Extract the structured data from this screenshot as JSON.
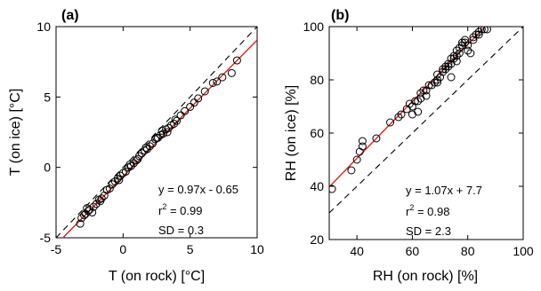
{
  "chart_data": [
    {
      "type": "scatter",
      "panel_label": "(a)",
      "xlabel": "T (on rock) [°C]",
      "ylabel": "T (on ice) [°C]",
      "xlim": [
        -5,
        10
      ],
      "ylim": [
        -5,
        10
      ],
      "xticks": [
        "-5",
        "0",
        "5",
        "10"
      ],
      "yticks": [
        "-5",
        "0",
        "5",
        "10"
      ],
      "one_to_one": {
        "x": [
          -5,
          10
        ],
        "y": [
          -5,
          10
        ],
        "style": "dashed",
        "color": "#000000"
      },
      "fit": {
        "slope": 0.97,
        "intercept": -0.65,
        "color": "#e0201b"
      },
      "annotation": {
        "eq": "y = 0.97x - 0.65",
        "r2_prefix": "r",
        "r2_sup": "2",
        "r2_value": " = 0.99",
        "sd": "SD = 0.3"
      },
      "points": [
        [
          -3.2,
          -4.0
        ],
        [
          -3.1,
          -3.6
        ],
        [
          -2.9,
          -3.4
        ],
        [
          -2.8,
          -3.3
        ],
        [
          -2.6,
          -3.1
        ],
        [
          -2.5,
          -3.0
        ],
        [
          -2.3,
          -3.2
        ],
        [
          -2.2,
          -2.8
        ],
        [
          -2.0,
          -2.6
        ],
        [
          -1.8,
          -2.3
        ],
        [
          -1.6,
          -2.2
        ],
        [
          -1.4,
          -2.0
        ],
        [
          -1.2,
          -1.6
        ],
        [
          -1.0,
          -1.5
        ],
        [
          -0.8,
          -1.2
        ],
        [
          -0.6,
          -1.0
        ],
        [
          -0.4,
          -0.8
        ],
        [
          -0.2,
          -0.6
        ],
        [
          0.0,
          -0.4
        ],
        [
          0.2,
          -0.3
        ],
        [
          0.4,
          0.0
        ],
        [
          0.6,
          0.1
        ],
        [
          0.8,
          0.3
        ],
        [
          1.0,
          0.5
        ],
        [
          1.2,
          0.8
        ],
        [
          1.4,
          1.0
        ],
        [
          1.6,
          1.2
        ],
        [
          1.8,
          1.3
        ],
        [
          2.0,
          1.5
        ],
        [
          2.2,
          1.7
        ],
        [
          2.4,
          2.0
        ],
        [
          2.6,
          2.1
        ],
        [
          2.8,
          2.3
        ],
        [
          3.0,
          2.4
        ],
        [
          3.2,
          2.7
        ],
        [
          3.4,
          2.8
        ],
        [
          3.6,
          3.0
        ],
        [
          3.8,
          3.1
        ],
        [
          4.0,
          3.3
        ],
        [
          4.3,
          3.7
        ],
        [
          4.6,
          4.0
        ],
        [
          5.0,
          4.3
        ],
        [
          5.3,
          4.6
        ],
        [
          5.6,
          4.9
        ],
        [
          6.1,
          5.4
        ],
        [
          6.7,
          6.0
        ],
        [
          7.0,
          6.1
        ],
        [
          7.4,
          6.4
        ],
        [
          8.1,
          6.7
        ],
        [
          8.5,
          7.6
        ],
        [
          -0.3,
          -0.9
        ],
        [
          0.5,
          0.2
        ],
        [
          1.1,
          0.6
        ],
        [
          2.5,
          2.1
        ],
        [
          3.3,
          2.5
        ],
        [
          -1.7,
          -2.4
        ],
        [
          -2.7,
          -2.9
        ],
        [
          1.7,
          1.4
        ],
        [
          2.9,
          2.6
        ],
        [
          3.9,
          3.4
        ]
      ]
    },
    {
      "type": "scatter",
      "panel_label": "(b)",
      "xlabel": "RH (on rock) [%]",
      "ylabel": "RH (on ice) [%]",
      "xlim": [
        30,
        100
      ],
      "ylim": [
        20,
        100
      ],
      "xticks": [
        "40",
        "60",
        "80",
        "100"
      ],
      "yticks": [
        "20",
        "40",
        "60",
        "80",
        "100"
      ],
      "one_to_one": {
        "x": [
          30,
          100
        ],
        "y": [
          30,
          100
        ],
        "style": "dashed",
        "color": "#000000"
      },
      "fit": {
        "slope": 1.07,
        "intercept": 7.7,
        "color": "#e0201b"
      },
      "annotation": {
        "eq": "y = 1.07x + 7.7",
        "r2_prefix": "r",
        "r2_sup": "2",
        "r2_value": " = 0.98",
        "sd": "SD = 2.3"
      },
      "points": [
        [
          31,
          39
        ],
        [
          38,
          46
        ],
        [
          40,
          50
        ],
        [
          41,
          53
        ],
        [
          42,
          55
        ],
        [
          42,
          57
        ],
        [
          47,
          58
        ],
        [
          52,
          64
        ],
        [
          55,
          66
        ],
        [
          56,
          67
        ],
        [
          58,
          69
        ],
        [
          59,
          71
        ],
        [
          60,
          70
        ],
        [
          61,
          72
        ],
        [
          62,
          72
        ],
        [
          63,
          73
        ],
        [
          63,
          75
        ],
        [
          64,
          76
        ],
        [
          65,
          76
        ],
        [
          66,
          78
        ],
        [
          67,
          78
        ],
        [
          68,
          79
        ],
        [
          69,
          80
        ],
        [
          69,
          82
        ],
        [
          70,
          81
        ],
        [
          71,
          83
        ],
        [
          71,
          84
        ],
        [
          72,
          84
        ],
        [
          72,
          85
        ],
        [
          73,
          85
        ],
        [
          73,
          86
        ],
        [
          74,
          86
        ],
        [
          74,
          88
        ],
        [
          75,
          88
        ],
        [
          75,
          89
        ],
        [
          76,
          89
        ],
        [
          76,
          91
        ],
        [
          77,
          90
        ],
        [
          77,
          92
        ],
        [
          78,
          93
        ],
        [
          78,
          94
        ],
        [
          79,
          94
        ],
        [
          79,
          95
        ],
        [
          80,
          93
        ],
        [
          80,
          91
        ],
        [
          81,
          90
        ],
        [
          82,
          95
        ],
        [
          83,
          97
        ],
        [
          84,
          98
        ],
        [
          85,
          99
        ],
        [
          86,
          99
        ],
        [
          87,
          99
        ],
        [
          84,
          97
        ],
        [
          82,
          96
        ],
        [
          74,
          81
        ],
        [
          69,
          79
        ],
        [
          65,
          74
        ],
        [
          62,
          68
        ],
        [
          60,
          67
        ],
        [
          76,
          87
        ]
      ]
    }
  ]
}
